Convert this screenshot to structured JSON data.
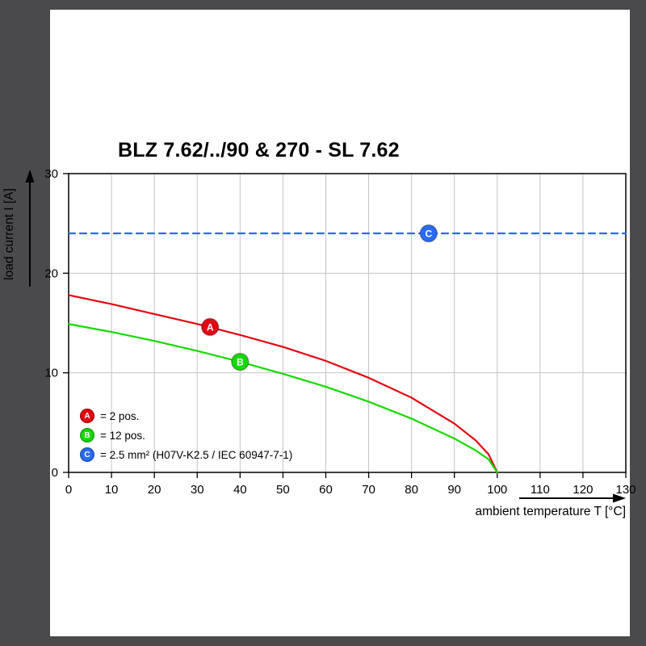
{
  "title": "BLZ 7.62/../90 & 270 - SL 7.62",
  "colors": {
    "frame_bg": "#4a4a4c",
    "panel_bg": "#ffffff",
    "grid": "#c4c4c4",
    "axis": "#000000",
    "series_a": "#e30613",
    "series_b": "#16d900",
    "series_c": "#2b6bf3"
  },
  "chart_data": {
    "type": "line",
    "title": "BLZ 7.62/../90 & 270 - SL 7.62",
    "xlabel": "ambient temperature T [°C]",
    "ylabel": "load current I [A]",
    "xlim": [
      0,
      130
    ],
    "ylim": [
      0,
      30
    ],
    "xticks": [
      0,
      10,
      20,
      30,
      40,
      50,
      60,
      70,
      80,
      90,
      100,
      110,
      120,
      130
    ],
    "yticks": [
      0,
      10,
      20,
      30
    ],
    "grid": true,
    "legend_position": "inside-bottom-left",
    "series": [
      {
        "name": "A",
        "label": "= 2 pos.",
        "color": "#e30613",
        "style": "solid",
        "points": [
          [
            0,
            17.8
          ],
          [
            10,
            16.9
          ],
          [
            20,
            15.9
          ],
          [
            30,
            14.9
          ],
          [
            40,
            13.8
          ],
          [
            50,
            12.6
          ],
          [
            60,
            11.2
          ],
          [
            70,
            9.5
          ],
          [
            80,
            7.5
          ],
          [
            90,
            4.9
          ],
          [
            95,
            3.2
          ],
          [
            98,
            1.8
          ],
          [
            100,
            0
          ]
        ]
      },
      {
        "name": "B",
        "label": "= 12 pos.",
        "color": "#16d900",
        "style": "solid",
        "points": [
          [
            0,
            14.9
          ],
          [
            10,
            14.1
          ],
          [
            20,
            13.2
          ],
          [
            30,
            12.2
          ],
          [
            40,
            11.1
          ],
          [
            50,
            9.9
          ],
          [
            60,
            8.6
          ],
          [
            70,
            7.1
          ],
          [
            80,
            5.4
          ],
          [
            90,
            3.4
          ],
          [
            95,
            2.2
          ],
          [
            98,
            1.3
          ],
          [
            100,
            0
          ]
        ]
      },
      {
        "name": "C",
        "label": "= 2.5 mm² (H07V-K2.5 / IEC 60947-7-1)",
        "color": "#2b6bf3",
        "style": "dashed",
        "points": [
          [
            0,
            24
          ],
          [
            130,
            24
          ]
        ]
      }
    ],
    "markers": [
      {
        "series": "A",
        "x": 33,
        "y": 14.6,
        "text": "A",
        "color": "#e30613"
      },
      {
        "series": "B",
        "x": 40,
        "y": 11.1,
        "text": "B",
        "color": "#16d900"
      },
      {
        "series": "C",
        "x": 84,
        "y": 24,
        "text": "C",
        "color": "#2b6bf3"
      }
    ]
  }
}
